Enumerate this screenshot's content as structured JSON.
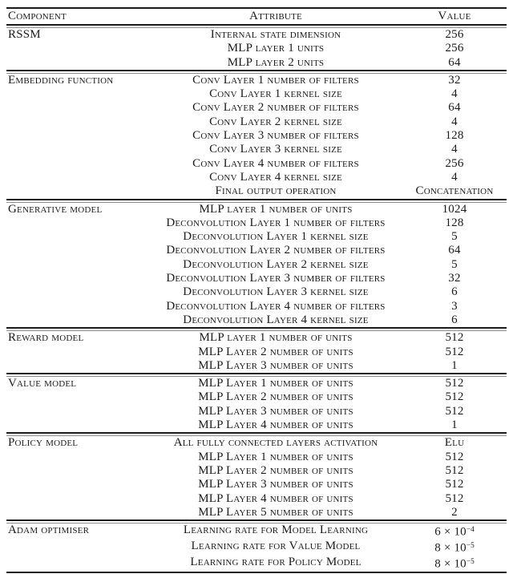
{
  "colors": {
    "background": "#ffffff",
    "text": "#1b1b1b",
    "rule_dark": "#1b1b1b",
    "rule_light": "#8f8f8f"
  },
  "table": {
    "columns": [
      "Component",
      "Attribute",
      "Value"
    ],
    "sections": [
      {
        "component": "RSSM",
        "rows": [
          {
            "attribute": "Internal state dimension",
            "value": "256"
          },
          {
            "attribute": "MLP layer 1 units",
            "value": "256"
          },
          {
            "attribute": "MLP layer 2 units",
            "value": "64"
          }
        ]
      },
      {
        "component": "Embedding function",
        "rows": [
          {
            "attribute": "Conv Layer 1 number of filters",
            "value": "32"
          },
          {
            "attribute": "Conv Layer 1 kernel size",
            "value": "4"
          },
          {
            "attribute": "Conv Layer 2 number of filters",
            "value": "64"
          },
          {
            "attribute": "Conv Layer 2 kernel size",
            "value": "4"
          },
          {
            "attribute": "Conv Layer 3 number of filters",
            "value": "128"
          },
          {
            "attribute": "Conv Layer 3 kernel size",
            "value": "4"
          },
          {
            "attribute": "Conv Layer 4 number of filters",
            "value": "256"
          },
          {
            "attribute": "Conv Layer 4 kernel size",
            "value": "4"
          },
          {
            "attribute": "Final output operation",
            "value": "Concatenation"
          }
        ]
      },
      {
        "component": "Generative model",
        "rows": [
          {
            "attribute": "MLP layer 1 number of units",
            "value": "1024"
          },
          {
            "attribute": "Deconvolution Layer 1 number of filters",
            "value": "128"
          },
          {
            "attribute": "Deconvolution Layer 1 kernel size",
            "value": "5"
          },
          {
            "attribute": "Deconvolution Layer 2 number of filters",
            "value": "64"
          },
          {
            "attribute": "Deconvolution Layer 2 kernel size",
            "value": "5"
          },
          {
            "attribute": "Deconvolution Layer 3 number of filters",
            "value": "32"
          },
          {
            "attribute": "Deconvolution Layer 3 kernel size",
            "value": "6"
          },
          {
            "attribute": "Deconvolution Layer 4 number of filters",
            "value": "3"
          },
          {
            "attribute": "Deconvolution Layer 4 kernel size",
            "value": "6"
          }
        ]
      },
      {
        "component": "Reward model",
        "rows": [
          {
            "attribute": "MLP layer 1 number of units",
            "value": "512"
          },
          {
            "attribute": "MLP Layer 2 number of units",
            "value": "512"
          },
          {
            "attribute": "MLP Layer 3 number of units",
            "value": "1"
          }
        ]
      },
      {
        "component": "Value model",
        "rows": [
          {
            "attribute": "MLP Layer 1 number of units",
            "value": "512"
          },
          {
            "attribute": "MLP Layer 2 number of units",
            "value": "512"
          },
          {
            "attribute": "MLP Layer 3 number of units",
            "value": "512"
          },
          {
            "attribute": "MLP Layer 4 number of units",
            "value": "1"
          }
        ]
      },
      {
        "component": "Policy model",
        "rows": [
          {
            "attribute": "All fully connected layers activation",
            "value": "Elu"
          },
          {
            "attribute": "MLP Layer 1 number of units",
            "value": "512"
          },
          {
            "attribute": "MLP Layer 2 number of units",
            "value": "512"
          },
          {
            "attribute": "MLP Layer 3 number of units",
            "value": "512"
          },
          {
            "attribute": "MLP Layer 4 number of units",
            "value": "512"
          },
          {
            "attribute": "MLP Layer 5 number of units",
            "value": "2"
          }
        ]
      },
      {
        "component": "Adam optimiser",
        "rows": [
          {
            "attribute": "Learning rate for Model Learning",
            "value": "6 × 10^−4"
          },
          {
            "attribute": "Learning rate for Value Model",
            "value": "8 × 10^−5"
          },
          {
            "attribute": "Learning rate for Policy Model",
            "value": "8 × 10^−5"
          }
        ]
      }
    ]
  }
}
